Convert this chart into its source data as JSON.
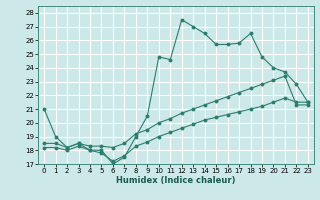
{
  "xlabel": "Humidex (Indice chaleur)",
  "xlim": [
    -0.5,
    23.5
  ],
  "ylim": [
    17,
    28.5
  ],
  "yticks": [
    17,
    18,
    19,
    20,
    21,
    22,
    23,
    24,
    25,
    26,
    27,
    28
  ],
  "xticks": [
    0,
    1,
    2,
    3,
    4,
    5,
    6,
    7,
    8,
    9,
    10,
    11,
    12,
    13,
    14,
    15,
    16,
    17,
    18,
    19,
    20,
    21,
    22,
    23
  ],
  "bg_color": "#cce8e8",
  "grid_color": "#ffffff",
  "line_color": "#2d7d6e",
  "line1_y": [
    21,
    19,
    18.2,
    18.5,
    18,
    18,
    17,
    17.5,
    19,
    20.5,
    24.8,
    24.6,
    27.5,
    27,
    26.5,
    25.7,
    25.7,
    25.8,
    26.5,
    24.8,
    24.0,
    23.7,
    22.8,
    21.5
  ],
  "line2_y": [
    18.5,
    18.5,
    18.2,
    18.5,
    18.3,
    18.3,
    18.2,
    18.5,
    19.2,
    19.5,
    20.0,
    20.3,
    20.7,
    21.0,
    21.3,
    21.6,
    21.9,
    22.2,
    22.5,
    22.8,
    23.1,
    23.4,
    21.3,
    21.3
  ],
  "line3_y": [
    18.2,
    18.2,
    18.0,
    18.3,
    18.0,
    17.8,
    17.2,
    17.6,
    18.3,
    18.6,
    19.0,
    19.3,
    19.6,
    19.9,
    20.2,
    20.4,
    20.6,
    20.8,
    21.0,
    21.2,
    21.5,
    21.8,
    21.5,
    21.5
  ]
}
